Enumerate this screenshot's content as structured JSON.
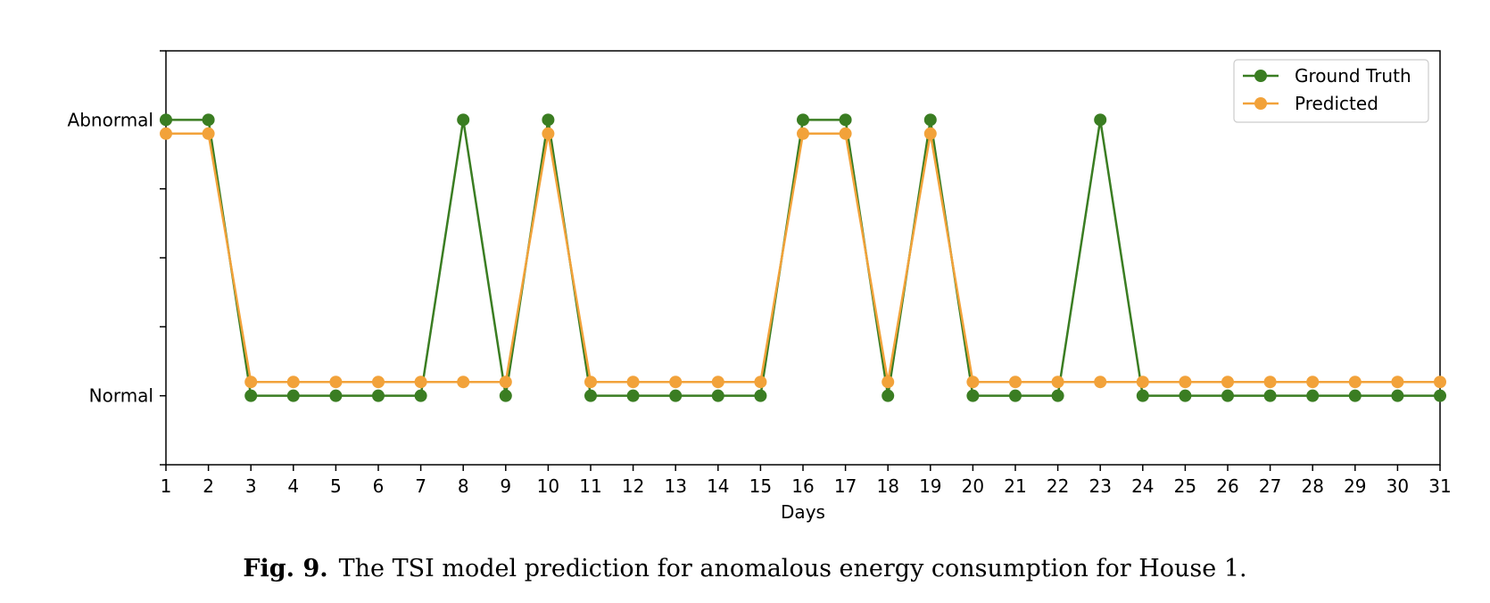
{
  "caption": {
    "label": "Fig. 9.",
    "text": "The TSI model prediction for anomalous energy consumption for House 1."
  },
  "chart_data": {
    "type": "line",
    "xlabel": "Days",
    "ylabel": "",
    "x": [
      1,
      2,
      3,
      4,
      5,
      6,
      7,
      8,
      9,
      10,
      11,
      12,
      13,
      14,
      15,
      16,
      17,
      18,
      19,
      20,
      21,
      22,
      23,
      24,
      25,
      26,
      27,
      28,
      29,
      30,
      31
    ],
    "xlim": [
      1,
      31
    ],
    "ylim": [
      -0.25,
      1.25
    ],
    "yticks": [
      {
        "value": 1,
        "label": "Abnormal"
      },
      {
        "value": 0,
        "label": "Normal"
      }
    ],
    "yticks_minor": [
      -0.25,
      0.25,
      0.5,
      0.75,
      1.25
    ],
    "grid": false,
    "legend": "top-right",
    "series": [
      {
        "name": "Ground Truth",
        "color": "#3a7d22",
        "values": [
          1,
          1,
          0,
          0,
          0,
          0,
          0,
          1,
          0,
          1,
          0,
          0,
          0,
          0,
          0,
          1,
          1,
          0,
          1,
          0,
          0,
          0,
          1,
          0,
          0,
          0,
          0,
          0,
          0,
          0,
          0
        ]
      },
      {
        "name": "Predicted",
        "color": "#f2a23a",
        "values": [
          0.95,
          0.95,
          0.05,
          0.05,
          0.05,
          0.05,
          0.05,
          0.05,
          0.05,
          0.95,
          0.05,
          0.05,
          0.05,
          0.05,
          0.05,
          0.95,
          0.95,
          0.05,
          0.95,
          0.05,
          0.05,
          0.05,
          0.05,
          0.05,
          0.05,
          0.05,
          0.05,
          0.05,
          0.05,
          0.05,
          0.05
        ]
      }
    ]
  }
}
